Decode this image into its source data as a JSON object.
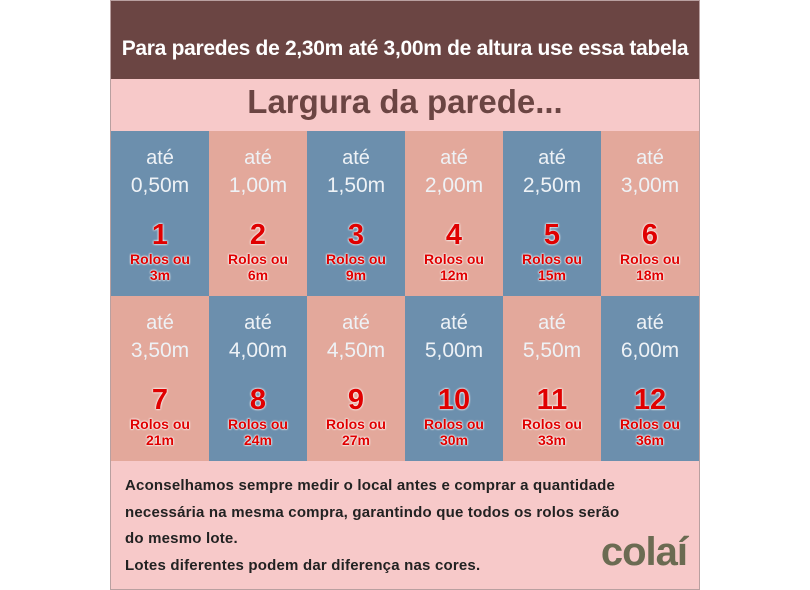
{
  "header": {
    "title": "Para paredes de 2,30m até 3,00m de altura use essa tabela",
    "heading": "Largura da parede..."
  },
  "cells": [
    {
      "upto": "até",
      "width": "0,50m",
      "number": "1",
      "rolls": "Rolos ou",
      "length": "3m"
    },
    {
      "upto": "até",
      "width": "1,00m",
      "number": "2",
      "rolls": "Rolos ou",
      "length": "6m"
    },
    {
      "upto": "até",
      "width": "1,50m",
      "number": "3",
      "rolls": "Rolos ou",
      "length": "9m"
    },
    {
      "upto": "até",
      "width": "2,00m",
      "number": "4",
      "rolls": "Rolos ou",
      "length": "12m"
    },
    {
      "upto": "até",
      "width": "2,50m",
      "number": "5",
      "rolls": "Rolos ou",
      "length": "15m"
    },
    {
      "upto": "até",
      "width": "3,00m",
      "number": "6",
      "rolls": "Rolos ou",
      "length": "18m"
    },
    {
      "upto": "até",
      "width": "3,50m",
      "number": "7",
      "rolls": "Rolos ou",
      "length": "21m"
    },
    {
      "upto": "até",
      "width": "4,00m",
      "number": "8",
      "rolls": "Rolos ou",
      "length": "24m"
    },
    {
      "upto": "até",
      "width": "4,50m",
      "number": "9",
      "rolls": "Rolos ou",
      "length": "27m"
    },
    {
      "upto": "até",
      "width": "5,00m",
      "number": "10",
      "rolls": "Rolos ou",
      "length": "30m"
    },
    {
      "upto": "até",
      "width": "5,50m",
      "number": "11",
      "rolls": "Rolos ou",
      "length": "33m"
    },
    {
      "upto": "até",
      "width": "6,00m",
      "number": "12",
      "rolls": "Rolos ou",
      "length": "36m"
    }
  ],
  "footer": {
    "lines": [
      "Aconselhamos sempre medir o local antes e comprar a quantidade",
      "necessária na mesma compra, garantindo que todos os rolos serão",
      "do mesmo lote.",
      "Lotes diferentes podem dar diferença nas cores."
    ],
    "logo": "colaí"
  }
}
